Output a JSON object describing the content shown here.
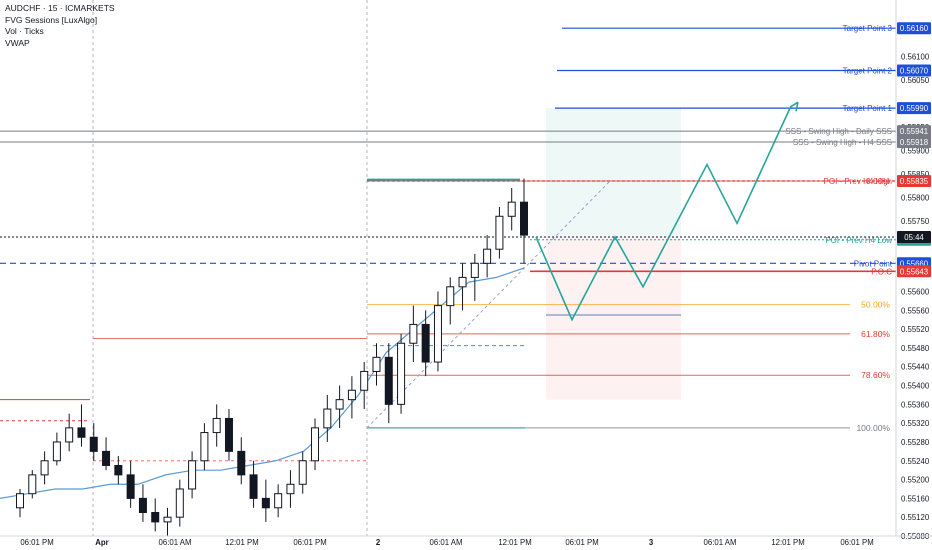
{
  "legend": {
    "symbol": "AUDCHF · 15 · ICMARKETS",
    "indicators": [
      "FVG Sessions [LuxAlgo]",
      "Vol · Ticks",
      "VWAP"
    ]
  },
  "colors": {
    "bull": "#131722",
    "bear": "#131722",
    "vwap": "#5b9bd5",
    "target": "#1e4fd6",
    "fib_orange": "#f5a623",
    "fib_red": "#e53935",
    "fib_gray": "#787b86",
    "projection": "#26a69a",
    "poc": "#e53935",
    "pivot": "#1e4fd6",
    "gridline": "#e6e8ee"
  },
  "chart_data": {
    "type": "candlestick",
    "title": "AUDCHF · 15 · ICMARKETS",
    "ylim": [
      0.5508,
      0.5622
    ],
    "x_ticks": [
      "06:01 PM",
      "Apr",
      "06:01 AM",
      "12:01 PM",
      "06:01 PM",
      "2",
      "06:01 AM",
      "12:01 PM",
      "06:01 PM",
      "3",
      "06:01 AM",
      "12:01 PM",
      "06:01 PM"
    ],
    "y_ticks": [
      "0.56100",
      "0.56050",
      "0.55950",
      "0.55900",
      "0.55850",
      "0.55800",
      "0.55750",
      "0.55600",
      "0.55560",
      "0.55520",
      "0.55480",
      "0.55440",
      "0.55400",
      "0.55360",
      "0.55320",
      "0.55280",
      "0.55240",
      "0.55200",
      "0.55160",
      "0.55120",
      "0.55080"
    ],
    "price_labels": [
      {
        "text": "Target Point 3",
        "value": "0.56160"
      },
      {
        "text": "Target Point 2",
        "value": "0.56070"
      },
      {
        "text": "Target Point 1",
        "value": "0.55990"
      },
      {
        "text": "SSS - Swing High - Daily SSS",
        "value": "0.55941"
      },
      {
        "text": "SSS - Swing High - H4 SSS",
        "value": "0.55918"
      },
      {
        "text": "POI - Prev H4 High",
        "value": "0.55835"
      },
      {
        "text": "POI - Prev H4 Low",
        "value": "0.55710"
      },
      {
        "text": "Pivot Point",
        "value": "0.55660"
      },
      {
        "text": "P.O.C",
        "value": "0.55643"
      }
    ],
    "current_price": {
      "value": "0.55716",
      "countdown": "05:44"
    },
    "fib_levels": [
      {
        "label": "0.00%",
        "value": 0.55835
      },
      {
        "label": "50.00%",
        "value": 0.55572
      },
      {
        "label": "61.80%",
        "value": 0.5551
      },
      {
        "label": "78.60%",
        "value": 0.55422
      },
      {
        "label": "100.00%",
        "value": 0.5531
      }
    ],
    "vwap": [
      0.5516,
      0.5517,
      0.5518,
      0.5518,
      0.5519,
      0.5519,
      0.5521,
      0.5522,
      0.5522,
      0.5523,
      0.5524,
      0.5526,
      0.5531,
      0.5538,
      0.5547,
      0.5552,
      0.5557,
      0.5562,
      0.5563,
      0.5565
    ],
    "projection_path": [
      0.55716,
      0.5554,
      0.55716,
      0.5561,
      0.5587,
      0.55745,
      0.5599
    ],
    "candles": [
      [
        0.5514,
        0.5518,
        0.5512,
        0.5517
      ],
      [
        0.5517,
        0.5522,
        0.5516,
        0.5521
      ],
      [
        0.5521,
        0.5526,
        0.5519,
        0.5524
      ],
      [
        0.5524,
        0.553,
        0.5523,
        0.5528
      ],
      [
        0.5528,
        0.5534,
        0.5526,
        0.5531
      ],
      [
        0.5531,
        0.5536,
        0.5527,
        0.5529
      ],
      [
        0.5529,
        0.5532,
        0.5524,
        0.5526
      ],
      [
        0.5526,
        0.5529,
        0.5522,
        0.5523
      ],
      [
        0.5523,
        0.5525,
        0.5519,
        0.5521
      ],
      [
        0.5521,
        0.5524,
        0.5514,
        0.5516
      ],
      [
        0.5516,
        0.5519,
        0.5511,
        0.5513
      ],
      [
        0.5513,
        0.5516,
        0.5509,
        0.5511
      ],
      [
        0.5511,
        0.5514,
        0.5508,
        0.5512
      ],
      [
        0.5512,
        0.552,
        0.551,
        0.5518
      ],
      [
        0.5518,
        0.5526,
        0.5516,
        0.5524
      ],
      [
        0.5524,
        0.5532,
        0.5522,
        0.553
      ],
      [
        0.553,
        0.5536,
        0.5527,
        0.5533
      ],
      [
        0.5533,
        0.5535,
        0.5524,
        0.5526
      ],
      [
        0.5526,
        0.5529,
        0.5519,
        0.5521
      ],
      [
        0.5521,
        0.5524,
        0.5514,
        0.5516
      ],
      [
        0.5516,
        0.552,
        0.5511,
        0.5514
      ],
      [
        0.5514,
        0.5519,
        0.5512,
        0.5517
      ],
      [
        0.5517,
        0.5522,
        0.5514,
        0.5519
      ],
      [
        0.5519,
        0.5526,
        0.5517,
        0.5524
      ],
      [
        0.5524,
        0.5533,
        0.5522,
        0.5531
      ],
      [
        0.5531,
        0.5538,
        0.5528,
        0.5535
      ],
      [
        0.5535,
        0.554,
        0.5531,
        0.5537
      ],
      [
        0.5537,
        0.5542,
        0.5533,
        0.5539
      ],
      [
        0.5539,
        0.5545,
        0.5535,
        0.5543
      ],
      [
        0.5543,
        0.5549,
        0.554,
        0.5546
      ],
      [
        0.5546,
        0.5549,
        0.5532,
        0.5536
      ],
      [
        0.5536,
        0.5551,
        0.5534,
        0.5549
      ],
      [
        0.5549,
        0.5557,
        0.5545,
        0.5553
      ],
      [
        0.5553,
        0.5556,
        0.5542,
        0.5545
      ],
      [
        0.5545,
        0.556,
        0.5543,
        0.5557
      ],
      [
        0.5557,
        0.5563,
        0.5553,
        0.5561
      ],
      [
        0.5561,
        0.5566,
        0.5556,
        0.5563
      ],
      [
        0.5563,
        0.5568,
        0.5558,
        0.5566
      ],
      [
        0.5566,
        0.5572,
        0.5563,
        0.5569
      ],
      [
        0.5569,
        0.5578,
        0.5567,
        0.5576
      ],
      [
        0.5576,
        0.5582,
        0.5573,
        0.5579
      ],
      [
        0.5579,
        0.5584,
        0.5566,
        0.5572
      ]
    ]
  },
  "projection_box": {
    "label": "risk-reward box"
  }
}
